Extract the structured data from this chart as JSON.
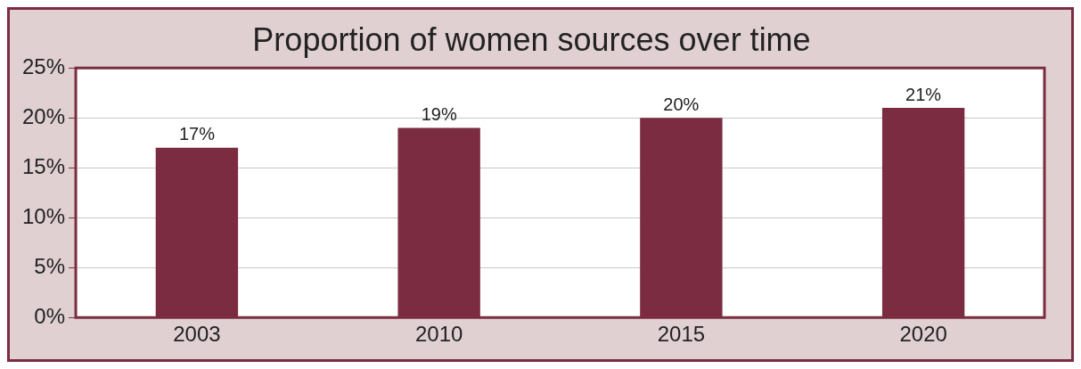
{
  "chart_data": {
    "type": "bar",
    "title": "Proportion of women sources over time",
    "categories": [
      "2003",
      "2010",
      "2015",
      "2020"
    ],
    "values": [
      17,
      19,
      20,
      21
    ],
    "color": "#7b2c40",
    "value_labels": [
      "17%",
      "19%",
      "20%",
      "21%"
    ],
    "ylim": [
      0,
      25
    ],
    "yticks": [
      {
        "value": 0,
        "label": "0%"
      },
      {
        "value": 5,
        "label": "5%"
      },
      {
        "value": 10,
        "label": "10%"
      },
      {
        "value": 15,
        "label": "15%"
      },
      {
        "value": 20,
        "label": "20%"
      },
      {
        "value": 25,
        "label": "25%"
      }
    ],
    "grid": "y",
    "legend": false
  }
}
